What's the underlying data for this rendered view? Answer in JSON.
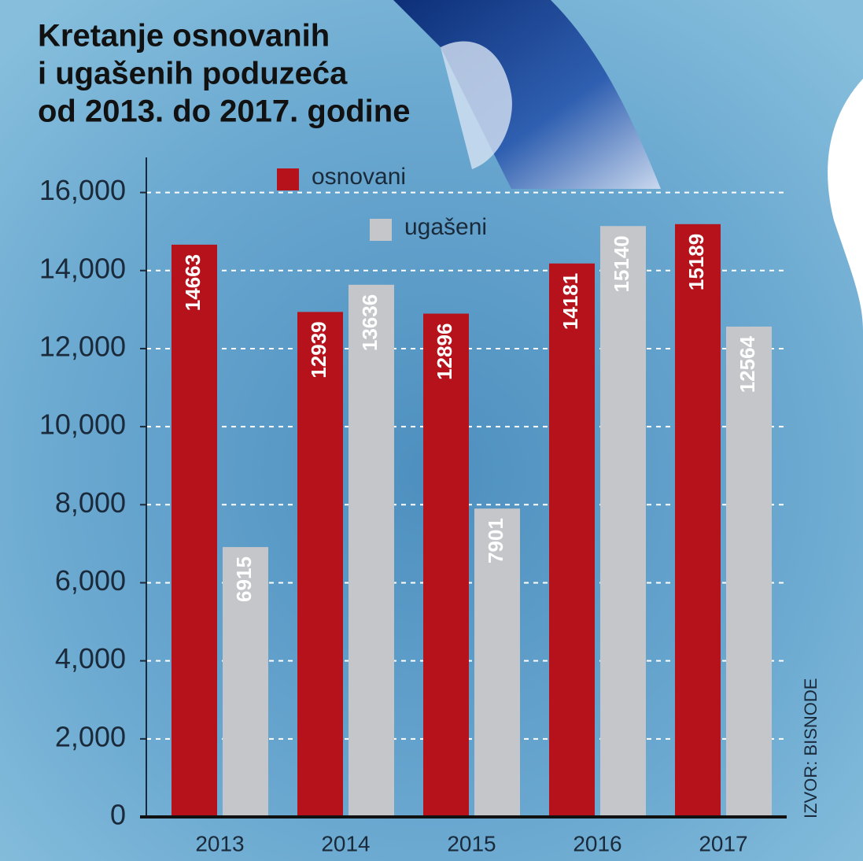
{
  "chart_data": {
    "type": "bar",
    "title": [
      "Kretanje osnovanih",
      "i ugašenih poduzeća",
      "od 2013. do 2017. godine"
    ],
    "categories": [
      "2013",
      "2014",
      "2015",
      "2016",
      "2017"
    ],
    "series": [
      {
        "name": "osnovani",
        "color": "#b5121b",
        "values": [
          14663,
          12939,
          12896,
          14181,
          15189
        ]
      },
      {
        "name": "ugašeni",
        "color": "#c4c6c9",
        "values": [
          6915,
          13636,
          7901,
          15140,
          12564
        ]
      }
    ],
    "ylim": [
      0,
      17000
    ],
    "yticks": [
      0,
      {
        "value": 2000,
        "label": "2,000"
      },
      {
        "value": 4000,
        "label": "4,000"
      },
      {
        "value": 6000,
        "label": "6,000"
      },
      {
        "value": 8000,
        "label": "8,000"
      },
      {
        "value": 10000,
        "label": "10,000"
      },
      {
        "value": 12000,
        "label": "12,000"
      },
      {
        "value": 14000,
        "label": "14,000"
      },
      {
        "value": 16000,
        "label": "16,000"
      }
    ],
    "grid": true,
    "source": "IZVOR: BISNODE"
  }
}
